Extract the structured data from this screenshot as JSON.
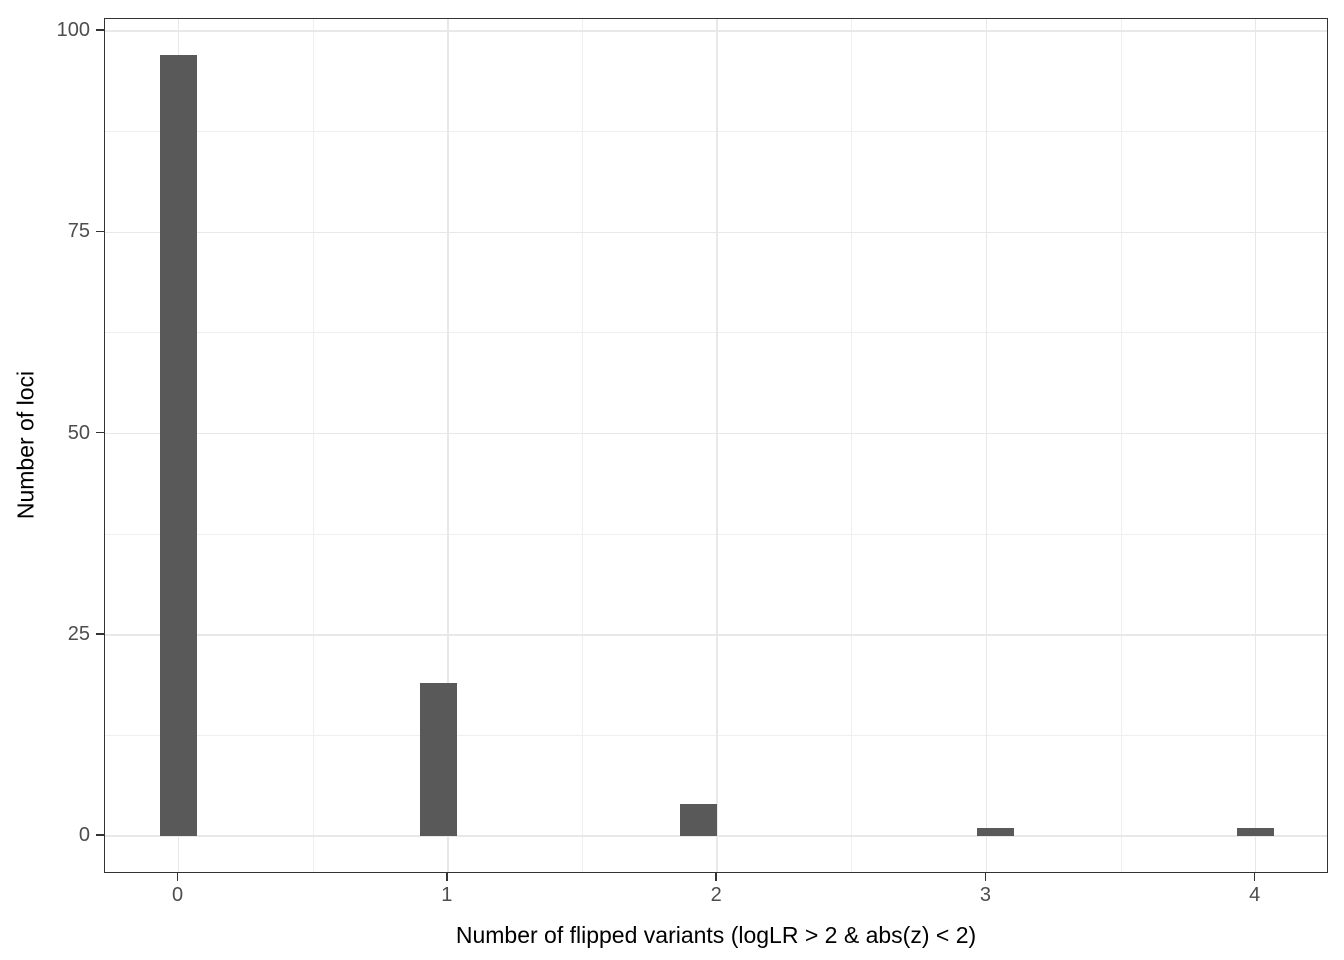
{
  "chart_data": {
    "type": "bar",
    "subtype": "histogram",
    "title": "",
    "xlabel": "Number of flipped variants (logLR > 2 & abs(z) < 2)",
    "ylabel": "Number of loci",
    "categories": [
      0,
      1,
      2,
      3,
      4
    ],
    "values": [
      97,
      19,
      4,
      1,
      1
    ],
    "bins": [
      {
        "x": 0,
        "x0": -0.069,
        "x1": 0.069,
        "count": 97
      },
      {
        "x": 1,
        "x0": 0.897,
        "x1": 1.034,
        "count": 19
      },
      {
        "x": 2,
        "x0": 1.862,
        "x1": 2.0,
        "count": 4
      },
      {
        "x": 3,
        "x0": 2.966,
        "x1": 3.103,
        "count": 1
      },
      {
        "x": 4,
        "x0": 3.931,
        "x1": 4.069,
        "count": 1
      }
    ],
    "x_ticks": [
      0,
      1,
      2,
      3,
      4
    ],
    "y_ticks": [
      0,
      25,
      50,
      75,
      100
    ],
    "x_minor_ticks": [
      0.5,
      1.5,
      2.5,
      3.5
    ],
    "y_minor_ticks": [
      12.5,
      37.5,
      62.5,
      87.5
    ],
    "xlim": [
      -0.273,
      4.272
    ],
    "ylim": [
      -4.7,
      101.5
    ],
    "grid": true,
    "legend": "none",
    "colors": {
      "bar_fill": "#595959",
      "grid_major": "#e8e8e8",
      "grid_minor": "#efefef",
      "panel_border": "#333333",
      "tick_mark": "#333333",
      "axis_text": "#4d4d4d",
      "axis_title": "#000000",
      "background": "#ffffff"
    }
  }
}
